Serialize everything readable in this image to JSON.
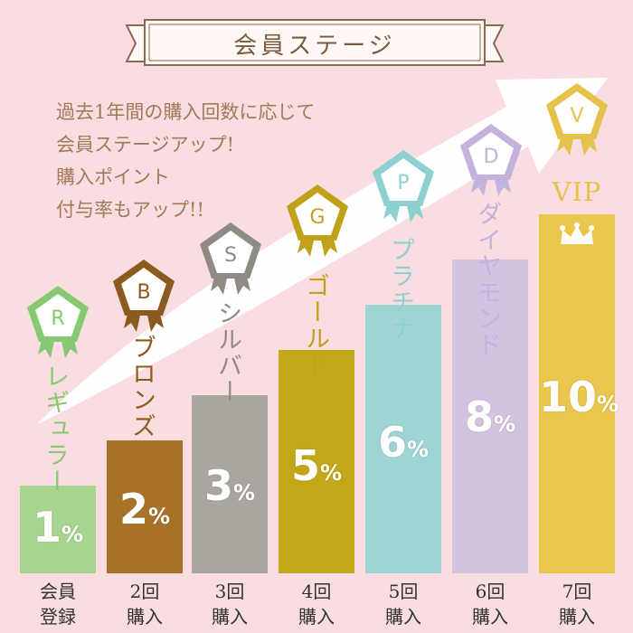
{
  "banner": {
    "title": "会員ステージ"
  },
  "intro": {
    "line1": "過去1年間の購入回数に応じて",
    "line2": "会員ステージアップ!",
    "line3": "購入ポイント",
    "line4": "付与率もアップ!!"
  },
  "stages": [
    {
      "letter": "R",
      "name": "レギュラー",
      "rate": "1",
      "unit": "%",
      "label1": "会員",
      "label2": "登録",
      "color": "#a7d48e",
      "text_color": "#88c873"
    },
    {
      "letter": "B",
      "name": "ブロンズ",
      "rate": "2",
      "unit": "%",
      "label1": "2回",
      "label2": "購入",
      "color": "#a87326",
      "text_color": "#8a5a1e"
    },
    {
      "letter": "S",
      "name": "シルバー",
      "rate": "3",
      "unit": "%",
      "label1": "3回",
      "label2": "購入",
      "color": "#a9a69f",
      "text_color": "#8e8b84"
    },
    {
      "letter": "G",
      "name": "ゴールド",
      "rate": "5",
      "unit": "%",
      "label1": "4回",
      "label2": "購入",
      "color": "#c2a718",
      "text_color": "#bfa21a"
    },
    {
      "letter": "P",
      "name": "プラチナ",
      "rate": "6",
      "unit": "%",
      "label1": "5回",
      "label2": "購入",
      "color": "#9fd4d4",
      "text_color": "#8ed0d0"
    },
    {
      "letter": "D",
      "name": "ダイヤモンド",
      "rate": "8",
      "unit": "%",
      "label1": "6回",
      "label2": "購入",
      "color": "#d2c4e0",
      "text_color": "#c3b2db"
    },
    {
      "letter": "V",
      "name": "VIP",
      "rate": "10",
      "unit": "%",
      "label1": "7回",
      "label2": "購入",
      "color": "#ebc64c",
      "text_color": "#e6c24a"
    }
  ]
}
